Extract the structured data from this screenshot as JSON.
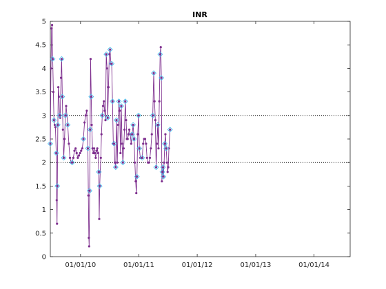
{
  "chart_data": {
    "type": "line",
    "title": "INR",
    "xlabel": "",
    "ylabel": "",
    "xlim": [
      "2009-06-26",
      "2014-08-15"
    ],
    "ylim": [
      0,
      5
    ],
    "grid": "none",
    "legend": "none",
    "x_tick_labels": [
      "01/01/10",
      "01/01/11",
      "01/01/12",
      "01/01/13",
      "01/01/14"
    ],
    "x_tick_dates": [
      "2010-01-01",
      "2011-01-01",
      "2012-01-01",
      "2013-01-01",
      "2014-01-01"
    ],
    "y_ticks": [
      0,
      0.5,
      1,
      1.5,
      2,
      2.5,
      3,
      3.5,
      4,
      4.5,
      5
    ],
    "y_tick_labels": [
      "0",
      "0.5",
      "1",
      "1.5",
      "2",
      "2.5",
      "3",
      "3.5",
      "4",
      "4.5",
      "5"
    ],
    "reference_lines": [
      {
        "y": 2,
        "style": "dotted",
        "color": "#000000"
      },
      {
        "y": 3,
        "style": "dotted",
        "color": "#000000"
      }
    ],
    "colors": {
      "line": "#7e2f8e",
      "dot": "#7e2f8e",
      "marker": "#4dbeee",
      "axes": "#262626"
    },
    "series": [
      {
        "points": [
          [
            "2009-06-26",
            2.4
          ],
          [
            "2009-06-30",
            4.0
          ],
          [
            "2009-07-04",
            4.85
          ],
          [
            "2009-07-07",
            4.92
          ],
          [
            "2009-07-11",
            4.2
          ],
          [
            "2009-07-15",
            3.5
          ],
          [
            "2009-07-19",
            2.9
          ],
          [
            "2009-07-24",
            2.8
          ],
          [
            "2009-07-28",
            2.75
          ],
          [
            "2009-08-02",
            2.2
          ],
          [
            "2009-08-05",
            1.2
          ],
          [
            "2009-08-07",
            0.7
          ],
          [
            "2009-08-09",
            1.5
          ],
          [
            "2009-08-12",
            2.8
          ],
          [
            "2009-08-15",
            3.6
          ],
          [
            "2009-08-19",
            3.4
          ],
          [
            "2009-08-23",
            3.0
          ],
          [
            "2009-08-27",
            2.95
          ],
          [
            "2009-09-01",
            3.8
          ],
          [
            "2009-09-05",
            4.2
          ],
          [
            "2009-09-09",
            3.4
          ],
          [
            "2009-09-13",
            2.7
          ],
          [
            "2009-09-18",
            2.1
          ],
          [
            "2009-09-23",
            2.5
          ],
          [
            "2009-09-28",
            3.0
          ],
          [
            "2009-10-03",
            3.2
          ],
          [
            "2009-10-08",
            3.0
          ],
          [
            "2009-10-13",
            2.8
          ],
          [
            "2009-10-20",
            2.4
          ],
          [
            "2009-10-27",
            2.1
          ],
          [
            "2009-11-03",
            2.0
          ],
          [
            "2009-11-10",
            2.0
          ],
          [
            "2009-11-17",
            2.1
          ],
          [
            "2009-11-24",
            2.25
          ],
          [
            "2009-12-01",
            2.3
          ],
          [
            "2009-12-08",
            2.2
          ],
          [
            "2009-12-15",
            2.1
          ],
          [
            "2009-12-22",
            2.15
          ],
          [
            "2009-12-29",
            2.2
          ],
          [
            "2010-01-05",
            2.25
          ],
          [
            "2010-01-12",
            2.3
          ],
          [
            "2010-01-19",
            2.5
          ],
          [
            "2010-01-26",
            2.85
          ],
          [
            "2010-02-02",
            3.0
          ],
          [
            "2010-02-09",
            3.1
          ],
          [
            "2010-02-16",
            2.3
          ],
          [
            "2010-02-19",
            1.3
          ],
          [
            "2010-02-22",
            0.4
          ],
          [
            "2010-02-24",
            0.22
          ],
          [
            "2010-02-27",
            1.4
          ],
          [
            "2010-03-02",
            2.7
          ],
          [
            "2010-03-05",
            4.2
          ],
          [
            "2010-03-09",
            3.4
          ],
          [
            "2010-03-12",
            2.8
          ],
          [
            "2010-03-17",
            2.3
          ],
          [
            "2010-03-22",
            2.2
          ],
          [
            "2010-03-27",
            2.3
          ],
          [
            "2010-04-01",
            2.2
          ],
          [
            "2010-04-06",
            2.1
          ],
          [
            "2010-04-11",
            2.25
          ],
          [
            "2010-04-16",
            2.3
          ],
          [
            "2010-04-21",
            2.2
          ],
          [
            "2010-04-25",
            1.8
          ],
          [
            "2010-04-28",
            0.8
          ],
          [
            "2010-05-01",
            1.5
          ],
          [
            "2010-05-04",
            1.8
          ],
          [
            "2010-05-08",
            2.1
          ],
          [
            "2010-05-12",
            2.6
          ],
          [
            "2010-05-17",
            3.0
          ],
          [
            "2010-05-22",
            3.2
          ],
          [
            "2010-05-27",
            3.3
          ],
          [
            "2010-06-01",
            3.1
          ],
          [
            "2010-06-06",
            2.9
          ],
          [
            "2010-06-11",
            4.3
          ],
          [
            "2010-06-16",
            4.0
          ],
          [
            "2010-06-20",
            2.95
          ],
          [
            "2010-06-25",
            3.6
          ],
          [
            "2010-06-30",
            4.3
          ],
          [
            "2010-07-05",
            4.4
          ],
          [
            "2010-07-10",
            4.1
          ],
          [
            "2010-07-15",
            4.1
          ],
          [
            "2010-07-20",
            3.3
          ],
          [
            "2010-07-25",
            2.4
          ],
          [
            "2010-07-30",
            2.4
          ],
          [
            "2010-08-04",
            2.0
          ],
          [
            "2010-08-09",
            1.9
          ],
          [
            "2010-08-14",
            2.9
          ],
          [
            "2010-08-19",
            2.0
          ],
          [
            "2010-08-24",
            2.8
          ],
          [
            "2010-08-29",
            3.3
          ],
          [
            "2010-09-03",
            3.1
          ],
          [
            "2010-09-08",
            2.2
          ],
          [
            "2010-09-13",
            3.2
          ],
          [
            "2010-09-18",
            2.4
          ],
          [
            "2010-09-23",
            2.0
          ],
          [
            "2010-09-28",
            2.3
          ],
          [
            "2010-10-03",
            2.7
          ],
          [
            "2010-10-08",
            3.3
          ],
          [
            "2010-10-13",
            2.9
          ],
          [
            "2010-10-18",
            2.5
          ],
          [
            "2010-10-23",
            2.5
          ],
          [
            "2010-10-28",
            2.6
          ],
          [
            "2010-11-02",
            2.7
          ],
          [
            "2010-11-08",
            2.6
          ],
          [
            "2010-11-14",
            2.4
          ],
          [
            "2010-11-20",
            2.6
          ],
          [
            "2010-11-26",
            2.8
          ],
          [
            "2010-12-02",
            2.5
          ],
          [
            "2010-12-07",
            2.0
          ],
          [
            "2010-12-12",
            1.6
          ],
          [
            "2010-12-16",
            1.35
          ],
          [
            "2010-12-20",
            1.7
          ],
          [
            "2010-12-25",
            2.6
          ],
          [
            "2010-12-30",
            3.0
          ],
          [
            "2011-01-04",
            2.3
          ],
          [
            "2011-01-10",
            2.1
          ],
          [
            "2011-01-16",
            2.1
          ],
          [
            "2011-01-22",
            2.1
          ],
          [
            "2011-01-28",
            2.4
          ],
          [
            "2011-02-03",
            2.5
          ],
          [
            "2011-02-09",
            2.5
          ],
          [
            "2011-02-15",
            2.4
          ],
          [
            "2011-02-21",
            2.1
          ],
          [
            "2011-02-27",
            2.0
          ],
          [
            "2011-03-05",
            2.0
          ],
          [
            "2011-03-11",
            2.1
          ],
          [
            "2011-03-17",
            2.3
          ],
          [
            "2011-03-23",
            2.6
          ],
          [
            "2011-03-29",
            3.0
          ],
          [
            "2011-04-04",
            3.9
          ],
          [
            "2011-04-09",
            3.3
          ],
          [
            "2011-04-14",
            2.9
          ],
          [
            "2011-04-19",
            1.9
          ],
          [
            "2011-04-24",
            2.4
          ],
          [
            "2011-04-29",
            2.8
          ],
          [
            "2011-05-04",
            2.3
          ],
          [
            "2011-05-09",
            3.3
          ],
          [
            "2011-05-14",
            4.3
          ],
          [
            "2011-05-18",
            4.45
          ],
          [
            "2011-05-22",
            3.8
          ],
          [
            "2011-05-25",
            1.6
          ],
          [
            "2011-05-28",
            1.8
          ],
          [
            "2011-06-01",
            1.9
          ],
          [
            "2011-06-04",
            1.7
          ],
          [
            "2011-06-08",
            2.0
          ],
          [
            "2011-06-12",
            2.4
          ],
          [
            "2011-06-16",
            2.6
          ],
          [
            "2011-06-21",
            2.3
          ],
          [
            "2011-06-26",
            2.0
          ],
          [
            "2011-06-30",
            1.8
          ],
          [
            "2011-07-04",
            1.9
          ],
          [
            "2011-07-08",
            2.3
          ],
          [
            "2011-07-15",
            2.7
          ]
        ]
      }
    ],
    "marker_dates": [
      "2009-06-26",
      "2009-07-11",
      "2009-07-19",
      "2009-08-02",
      "2009-08-09",
      "2009-08-12",
      "2009-08-23",
      "2009-09-05",
      "2009-09-09",
      "2009-09-18",
      "2009-09-28",
      "2009-10-13",
      "2009-11-10",
      "2010-01-19",
      "2010-02-16",
      "2010-02-27",
      "2010-03-02",
      "2010-03-09",
      "2010-04-25",
      "2010-05-01",
      "2010-05-17",
      "2010-06-11",
      "2010-06-20",
      "2010-07-05",
      "2010-07-15",
      "2010-07-20",
      "2010-07-30",
      "2010-08-09",
      "2010-08-14",
      "2010-08-29",
      "2010-09-13",
      "2010-09-23",
      "2010-10-08",
      "2010-11-20",
      "2010-11-26",
      "2010-12-02",
      "2010-12-20",
      "2010-12-30",
      "2011-01-04",
      "2011-01-22",
      "2011-03-29",
      "2011-04-04",
      "2011-04-19",
      "2011-04-29",
      "2011-05-14",
      "2011-05-22",
      "2011-05-28",
      "2011-06-01",
      "2011-06-04",
      "2011-06-12",
      "2011-06-21",
      "2011-07-15"
    ]
  }
}
